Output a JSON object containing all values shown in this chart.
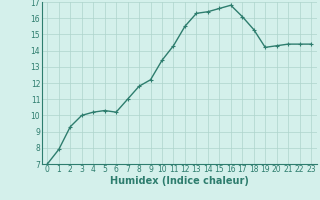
{
  "x": [
    0,
    1,
    2,
    3,
    4,
    5,
    6,
    7,
    8,
    9,
    10,
    11,
    12,
    13,
    14,
    15,
    16,
    17,
    18,
    19,
    20,
    21,
    22,
    23
  ],
  "y": [
    7.0,
    7.9,
    9.3,
    10.0,
    10.2,
    10.3,
    10.2,
    11.0,
    11.8,
    12.2,
    13.4,
    14.3,
    15.5,
    16.3,
    16.4,
    16.6,
    16.8,
    16.1,
    15.3,
    14.2,
    14.3,
    14.4,
    14.4,
    14.4
  ],
  "line_color": "#2e7d6e",
  "marker": "+",
  "marker_size": 3,
  "bg_color": "#d4f0eb",
  "grid_color": "#aed4cc",
  "xlabel": "Humidex (Indice chaleur)",
  "ylim": [
    7,
    17
  ],
  "xlim": [
    -0.5,
    23.5
  ],
  "yticks": [
    7,
    8,
    9,
    10,
    11,
    12,
    13,
    14,
    15,
    16,
    17
  ],
  "xticks": [
    0,
    1,
    2,
    3,
    4,
    5,
    6,
    7,
    8,
    9,
    10,
    11,
    12,
    13,
    14,
    15,
    16,
    17,
    18,
    19,
    20,
    21,
    22,
    23
  ],
  "xlabel_fontsize": 7,
  "tick_fontsize": 5.5,
  "line_width": 1.0,
  "marker_edge_width": 0.8
}
